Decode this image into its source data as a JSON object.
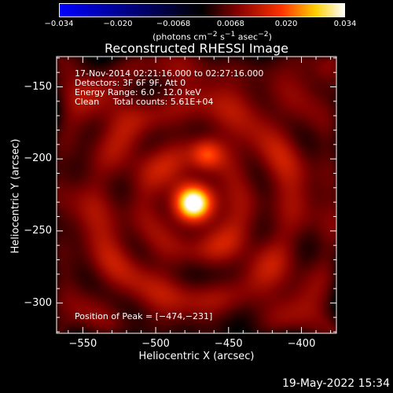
{
  "chart_data": {
    "type": "heatmap",
    "title": "Reconstructed RHESSI Image",
    "xlabel": "Heliocentric X (arcsec)",
    "ylabel": "Heliocentric Y (arcsec)",
    "xlim": [
      -568,
      -376
    ],
    "ylim": [
      -321,
      -129
    ],
    "x_ticks": [
      -550,
      -500,
      -450,
      -400
    ],
    "x_tick_labels": [
      "−550",
      "−500",
      "−450",
      "−400"
    ],
    "y_ticks": [
      -150,
      -200,
      -250,
      -300
    ],
    "y_tick_labels": [
      "−150",
      "−200",
      "−250",
      "−300"
    ],
    "colorbar": {
      "min": -0.034,
      "max": 0.034,
      "tick_values": [
        -0.034,
        -0.02,
        -0.0068,
        0.0068,
        0.02,
        0.034
      ],
      "tick_labels": [
        "−0.034",
        "−0.020",
        "−0.0068",
        "0.0068",
        "0.020",
        "0.034"
      ],
      "units_main": "(photons cm",
      "units_sup1": "−2",
      "units_mid": " s",
      "units_sup2": "−1",
      "units_end": " asec",
      "units_sup3": "−2",
      "units_close": ")",
      "colormap": [
        "#0000ff",
        "#000000",
        "#800000",
        "#ff3300",
        "#ffd000",
        "#ffffff"
      ]
    },
    "sources": [
      {
        "x": -474,
        "y": -231,
        "peak": 0.034
      },
      {
        "x": -465,
        "y": -197,
        "peak": 0.02
      }
    ],
    "peak_position": [
      -474,
      -231
    ],
    "grid": false
  },
  "info_lines": [
    "17-Nov-2014 02:21:16.000 to 02:27:16.000",
    "Detectors: 3F 6F 9F, Att 0",
    "Energy Range: 6.0 - 12.0 keV",
    "Clean     Total counts: 5.61E+04"
  ],
  "peak_label": "Position of Peak = [−474,−231]",
  "footer_date": "19-May-2022 15:34"
}
